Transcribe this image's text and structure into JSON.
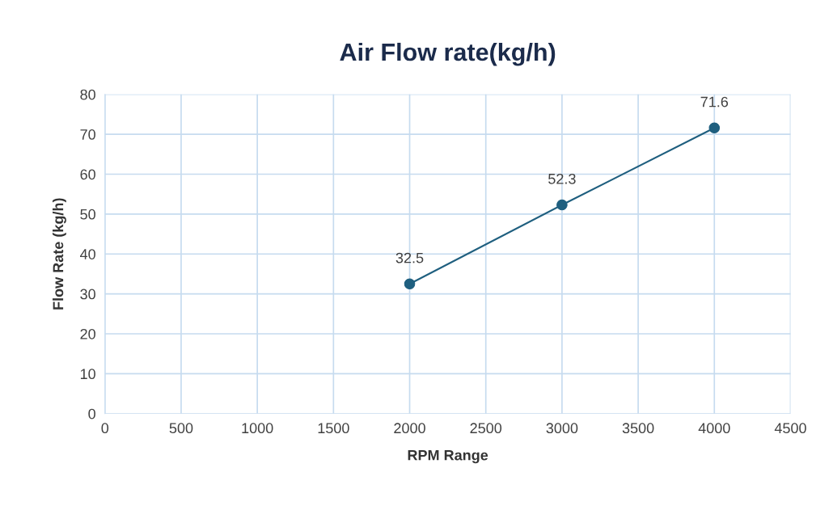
{
  "chart_data": {
    "type": "line",
    "title": "Air Flow rate(kg/h)",
    "xlabel": "RPM Range",
    "ylabel": "Flow Rate (kg/h)",
    "x": [
      2000,
      3000,
      4000
    ],
    "series": [
      {
        "color": "#1f5f7f",
        "values": [
          32.5,
          52.3,
          71.6
        ]
      }
    ],
    "xlim": [
      0,
      4500
    ],
    "xticks": [
      0,
      500,
      1000,
      1500,
      2000,
      2500,
      3000,
      3500,
      4000,
      4500
    ],
    "ylim": [
      0,
      80
    ],
    "yticks": [
      0,
      10,
      20,
      30,
      40,
      50,
      60,
      70,
      80
    ],
    "grid": true,
    "marker": "circle",
    "line_style": "solid",
    "data_labels": true
  }
}
